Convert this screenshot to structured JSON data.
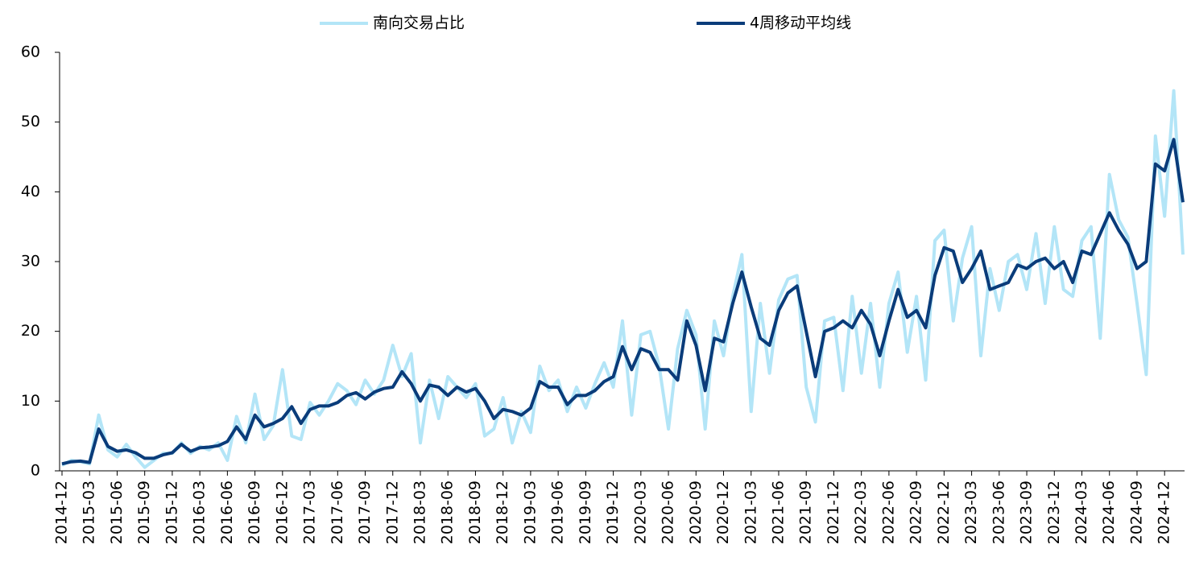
{
  "chart_data": {
    "type": "line",
    "categories": [
      "2014-12",
      null,
      null,
      "2015-03",
      null,
      null,
      "2015-06",
      null,
      null,
      "2015-09",
      null,
      null,
      "2015-12",
      null,
      null,
      "2016-03",
      null,
      null,
      "2016-06",
      null,
      null,
      "2016-09",
      null,
      null,
      "2016-12",
      null,
      null,
      "2017-03",
      null,
      null,
      "2017-06",
      null,
      null,
      "2017-09",
      null,
      null,
      "2017-12",
      null,
      null,
      "2018-03",
      null,
      null,
      "2018-06",
      null,
      null,
      "2018-09",
      null,
      null,
      "2018-12",
      null,
      null,
      "2019-03",
      null,
      null,
      "2019-06",
      null,
      null,
      "2019-09",
      null,
      null,
      "2019-12",
      null,
      null,
      "2020-03",
      null,
      null,
      "2020-06",
      null,
      null,
      "2020-09",
      null,
      null,
      "2020-12",
      null,
      null,
      "2021-03",
      null,
      null,
      "2021-06",
      null,
      null,
      "2021-09",
      null,
      null,
      "2021-12",
      null,
      null,
      "2022-03",
      null,
      null,
      "2022-06",
      null,
      null,
      "2022-09",
      null,
      null,
      "2022-12",
      null,
      null,
      "2023-03",
      null,
      null,
      "2023-06",
      null,
      null,
      "2023-09",
      null,
      null,
      "2023-12",
      null,
      null,
      "2024-03",
      null,
      null,
      "2024-06",
      null,
      null,
      "2024-09",
      null,
      null,
      "2024-12",
      null,
      null
    ],
    "series": [
      {
        "name": "南向交易占比",
        "color": "#b3e5f7",
        "values": [
          0.8,
          1.5,
          1.3,
          1.0,
          8.0,
          3.0,
          2.0,
          3.8,
          2.0,
          0.5,
          1.5,
          2.5,
          2.5,
          4.0,
          2.5,
          3.5,
          3.0,
          4.0,
          1.5,
          7.8,
          4.0,
          11.0,
          4.5,
          6.5,
          14.5,
          5.0,
          4.5,
          9.8,
          8.0,
          10.0,
          12.5,
          11.5,
          9.5,
          13.0,
          11.0,
          13.0,
          18.0,
          13.5,
          16.8,
          4.0,
          13.0,
          7.5,
          13.5,
          12.0,
          10.5,
          12.5,
          5.0,
          6.0,
          10.5,
          4.0,
          8.5,
          5.5,
          15.0,
          11.5,
          13.0,
          8.5,
          12.0,
          9.0,
          12.5,
          15.5,
          12.0,
          21.5,
          8.0,
          19.5,
          20.0,
          15.0,
          6.0,
          17.5,
          23.0,
          19.5,
          6.0,
          21.5,
          16.5,
          25.0,
          31.0,
          8.5,
          24.0,
          14.0,
          24.5,
          27.5,
          28.0,
          12.0,
          7.0,
          21.5,
          22.0,
          11.5,
          25.0,
          14.0,
          24.0,
          12.0,
          24.0,
          28.5,
          17.0,
          25.0,
          13.0,
          33.0,
          34.5,
          21.5,
          30.5,
          35.0,
          16.5,
          29.0,
          23.0,
          30.0,
          31.0,
          26.0,
          34.0,
          24.0,
          35.0,
          26.0,
          25.0,
          33.0,
          35.0,
          19.0,
          42.5,
          36.0,
          33.5,
          24.0,
          13.8,
          48.0,
          36.5,
          54.5,
          31.0
        ]
      },
      {
        "name": "4周移动平均线",
        "color": "#0a3c7a",
        "values": [
          1.0,
          1.3,
          1.4,
          1.2,
          6.0,
          3.5,
          2.8,
          3.0,
          2.6,
          1.8,
          1.8,
          2.3,
          2.6,
          3.8,
          2.8,
          3.3,
          3.4,
          3.6,
          4.2,
          6.3,
          4.5,
          8.0,
          6.3,
          6.8,
          7.5,
          9.2,
          6.8,
          8.8,
          9.3,
          9.3,
          9.8,
          10.8,
          11.2,
          10.3,
          11.3,
          11.8,
          12.0,
          14.2,
          12.5,
          10.0,
          12.3,
          12.0,
          10.8,
          12.0,
          11.3,
          11.8,
          10.0,
          7.5,
          8.8,
          8.5,
          8.0,
          9.0,
          12.8,
          12.0,
          12.0,
          9.5,
          10.8,
          10.8,
          11.5,
          12.8,
          13.5,
          17.8,
          14.5,
          17.5,
          17.0,
          14.5,
          14.5,
          13.0,
          21.5,
          18.0,
          11.5,
          19.0,
          18.5,
          24.0,
          28.5,
          23.5,
          19.0,
          18.0,
          23.0,
          25.5,
          26.5,
          20.0,
          13.5,
          20.0,
          20.5,
          21.5,
          20.5,
          23.0,
          21.0,
          16.5,
          21.5,
          26.0,
          22.0,
          23.0,
          20.5,
          28.0,
          32.0,
          31.5,
          27.0,
          29.0,
          31.5,
          26.0,
          26.5,
          27.0,
          29.5,
          29.0,
          30.0,
          30.5,
          29.0,
          30.0,
          27.0,
          31.5,
          31.0,
          34.0,
          37.0,
          34.5,
          32.5,
          29.0,
          30.0,
          44.0,
          43.0,
          47.5,
          38.5
        ]
      }
    ],
    "ylim": [
      0,
      60
    ],
    "yticks": [
      0,
      10,
      20,
      30,
      40,
      50,
      60
    ],
    "legend": "top"
  }
}
